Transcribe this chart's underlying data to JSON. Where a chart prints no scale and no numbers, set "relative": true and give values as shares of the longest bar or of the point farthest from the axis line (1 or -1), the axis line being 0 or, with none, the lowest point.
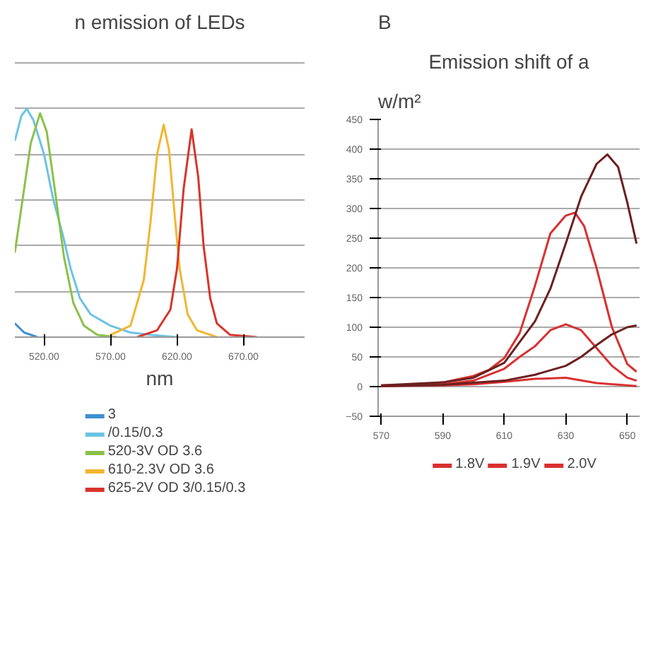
{
  "chart_data": [
    {
      "type": "line",
      "title": "n emission of LEDs",
      "xlabel": "nm",
      "relative": true,
      "grid": "y",
      "legend": "bottom",
      "xlim": [
        498,
        716
      ],
      "xticks": [
        {
          "value": 520,
          "label": "520.00"
        },
        {
          "value": 570,
          "label": "570.00"
        },
        {
          "value": 620,
          "label": "620.00"
        },
        {
          "value": 670,
          "label": "670.00"
        }
      ],
      "series": [
        {
          "name": "3",
          "color": "#3f8fd2",
          "x": [
            498,
            505,
            515
          ],
          "values": [
            0.06,
            0.02,
            0
          ]
        },
        {
          "name": "/0.15/0.3",
          "color": "#6cc3e3",
          "x": [
            498,
            503,
            507,
            512,
            520,
            527,
            534,
            540,
            547,
            555,
            570,
            585,
            600,
            620
          ],
          "values": [
            0.86,
            0.97,
            1.0,
            0.95,
            0.8,
            0.6,
            0.45,
            0.3,
            0.17,
            0.1,
            0.05,
            0.02,
            0.01,
            0
          ]
        },
        {
          "name": "520-3V OD 3.6",
          "color": "#8cc04a",
          "x": [
            498,
            505,
            510,
            517,
            522,
            528,
            535,
            542,
            550,
            560,
            575
          ],
          "values": [
            0.37,
            0.65,
            0.85,
            0.98,
            0.9,
            0.65,
            0.35,
            0.15,
            0.05,
            0.01,
            0
          ]
        },
        {
          "name": "610-2.3V OD 3.6",
          "color": "#f2b630",
          "x": [
            570,
            585,
            595,
            600,
            605,
            610,
            614,
            618,
            622,
            628,
            635,
            650
          ],
          "values": [
            0.01,
            0.05,
            0.25,
            0.5,
            0.8,
            0.93,
            0.82,
            0.55,
            0.3,
            0.1,
            0.03,
            0
          ]
        },
        {
          "name": "625-2V OD 3/0.15/0.3",
          "color": "#d9342b",
          "x": [
            590,
            605,
            615,
            620,
            625,
            631,
            636,
            640,
            645,
            650,
            660,
            680
          ],
          "values": [
            0,
            0.03,
            0.12,
            0.3,
            0.65,
            0.91,
            0.7,
            0.4,
            0.17,
            0.06,
            0.01,
            0
          ]
        }
      ]
    },
    {
      "type": "line",
      "title": "Emission shift of a",
      "ylabel": "w/m²",
      "annotations": [
        "B"
      ],
      "grid": "y",
      "legend": "bottom",
      "xlim": [
        569,
        654
      ],
      "ylim": [
        -50,
        450
      ],
      "xticks": [
        570,
        590,
        610,
        630,
        650
      ],
      "yticks": [
        -50,
        0,
        50,
        100,
        150,
        200,
        250,
        300,
        350,
        400,
        450
      ],
      "series": [
        {
          "name": "1.8V",
          "color": "#d93030",
          "x": [
            570,
            590,
            600,
            610,
            620,
            630,
            640,
            650,
            653
          ],
          "values": [
            1,
            2,
            4,
            8,
            13,
            15,
            6,
            2,
            1
          ]
        },
        {
          "name": "1.9V",
          "color": "#d93030",
          "x": [
            570,
            590,
            600,
            610,
            615,
            620,
            625,
            630,
            635,
            640,
            645,
            650,
            653
          ],
          "values": [
            1,
            4,
            10,
            30,
            50,
            68,
            95,
            105,
            95,
            65,
            35,
            15,
            10
          ]
        },
        {
          "name": "2.0V",
          "color": "#d93030",
          "x": [
            570,
            580,
            590,
            600,
            605,
            610,
            615,
            620,
            625,
            630,
            633,
            636,
            640,
            645,
            650,
            653
          ],
          "values": [
            2,
            3,
            7,
            18,
            28,
            48,
            90,
            170,
            258,
            288,
            293,
            270,
            200,
            100,
            38,
            25
          ]
        },
        {
          "color": "#6b1f1f",
          "x": [
            570,
            590,
            600,
            610,
            620,
            625,
            630,
            635,
            640,
            643.5,
            647,
            650,
            653
          ],
          "values": [
            2,
            7,
            15,
            40,
            110,
            165,
            241,
            320,
            375,
            391,
            370,
            310,
            241
          ]
        },
        {
          "color": "#6b1f1f",
          "x": [
            570,
            590,
            610,
            620,
            630,
            635,
            640,
            645,
            650,
            653
          ],
          "values": [
            1,
            3,
            10,
            20,
            35,
            50,
            70,
            88,
            100,
            103
          ]
        }
      ]
    }
  ]
}
